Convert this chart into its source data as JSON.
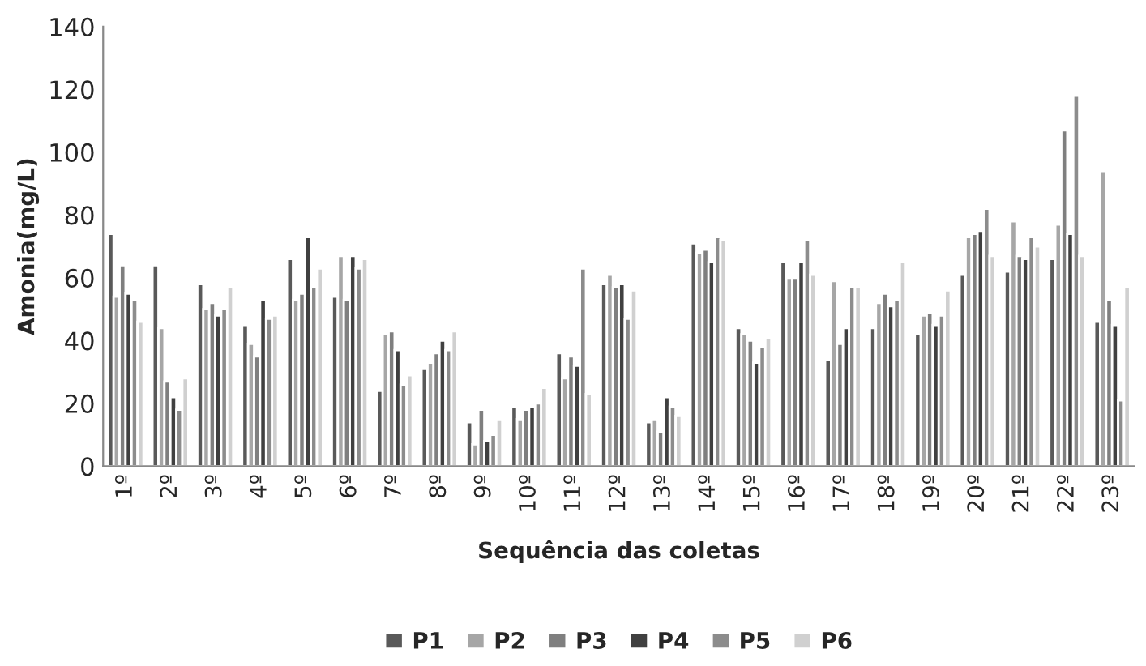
{
  "chart_data": {
    "type": "bar",
    "xlabel": "Sequência das coletas",
    "ylabel": "Amonia(mg/L)",
    "categories": [
      "1º",
      "2º",
      "3º",
      "4º",
      "5º",
      "6º",
      "7º",
      "8º",
      "9º",
      "10º",
      "11º",
      "12º",
      "13º",
      "14º",
      "15º",
      "16º",
      "17º",
      "18º",
      "19º",
      "20º",
      "21º",
      "22º",
      "23º"
    ],
    "series": [
      {
        "name": "P1",
        "color": "#595959",
        "values": [
          74,
          64,
          58,
          45,
          66,
          54,
          24,
          31,
          14,
          19,
          36,
          58,
          14,
          71,
          44,
          65,
          34,
          44,
          42,
          61,
          62,
          66,
          46
        ]
      },
      {
        "name": "P2",
        "color": "#a6a6a6",
        "values": [
          54,
          44,
          50,
          39,
          53,
          67,
          42,
          33,
          7,
          15,
          28,
          61,
          15,
          68,
          42,
          60,
          59,
          52,
          48,
          73,
          78,
          77,
          94
        ]
      },
      {
        "name": "P3",
        "color": "#7f7f7f",
        "values": [
          64,
          27,
          52,
          35,
          55,
          53,
          43,
          36,
          18,
          18,
          35,
          57,
          11,
          69,
          40,
          60,
          39,
          55,
          49,
          74,
          67,
          107,
          53
        ]
      },
      {
        "name": "P4",
        "color": "#404040",
        "values": [
          55,
          22,
          48,
          53,
          73,
          67,
          37,
          40,
          8,
          19,
          32,
          58,
          22,
          65,
          33,
          65,
          44,
          51,
          45,
          75,
          66,
          74,
          45
        ]
      },
      {
        "name": "P5",
        "color": "#8c8c8c",
        "values": [
          53,
          18,
          50,
          47,
          57,
          63,
          26,
          37,
          10,
          20,
          63,
          47,
          19,
          73,
          38,
          72,
          57,
          53,
          48,
          82,
          73,
          118,
          21
        ]
      },
      {
        "name": "P6",
        "color": "#d0d0d0",
        "values": [
          46,
          28,
          57,
          48,
          63,
          66,
          29,
          43,
          15,
          25,
          23,
          56,
          16,
          72,
          41,
          61,
          57,
          65,
          56,
          67,
          70,
          67,
          57
        ]
      }
    ],
    "ylim": [
      0,
      140
    ],
    "yticks": [
      0,
      20,
      40,
      60,
      80,
      100,
      120,
      140
    ],
    "grid": false,
    "legend": "bottom"
  }
}
